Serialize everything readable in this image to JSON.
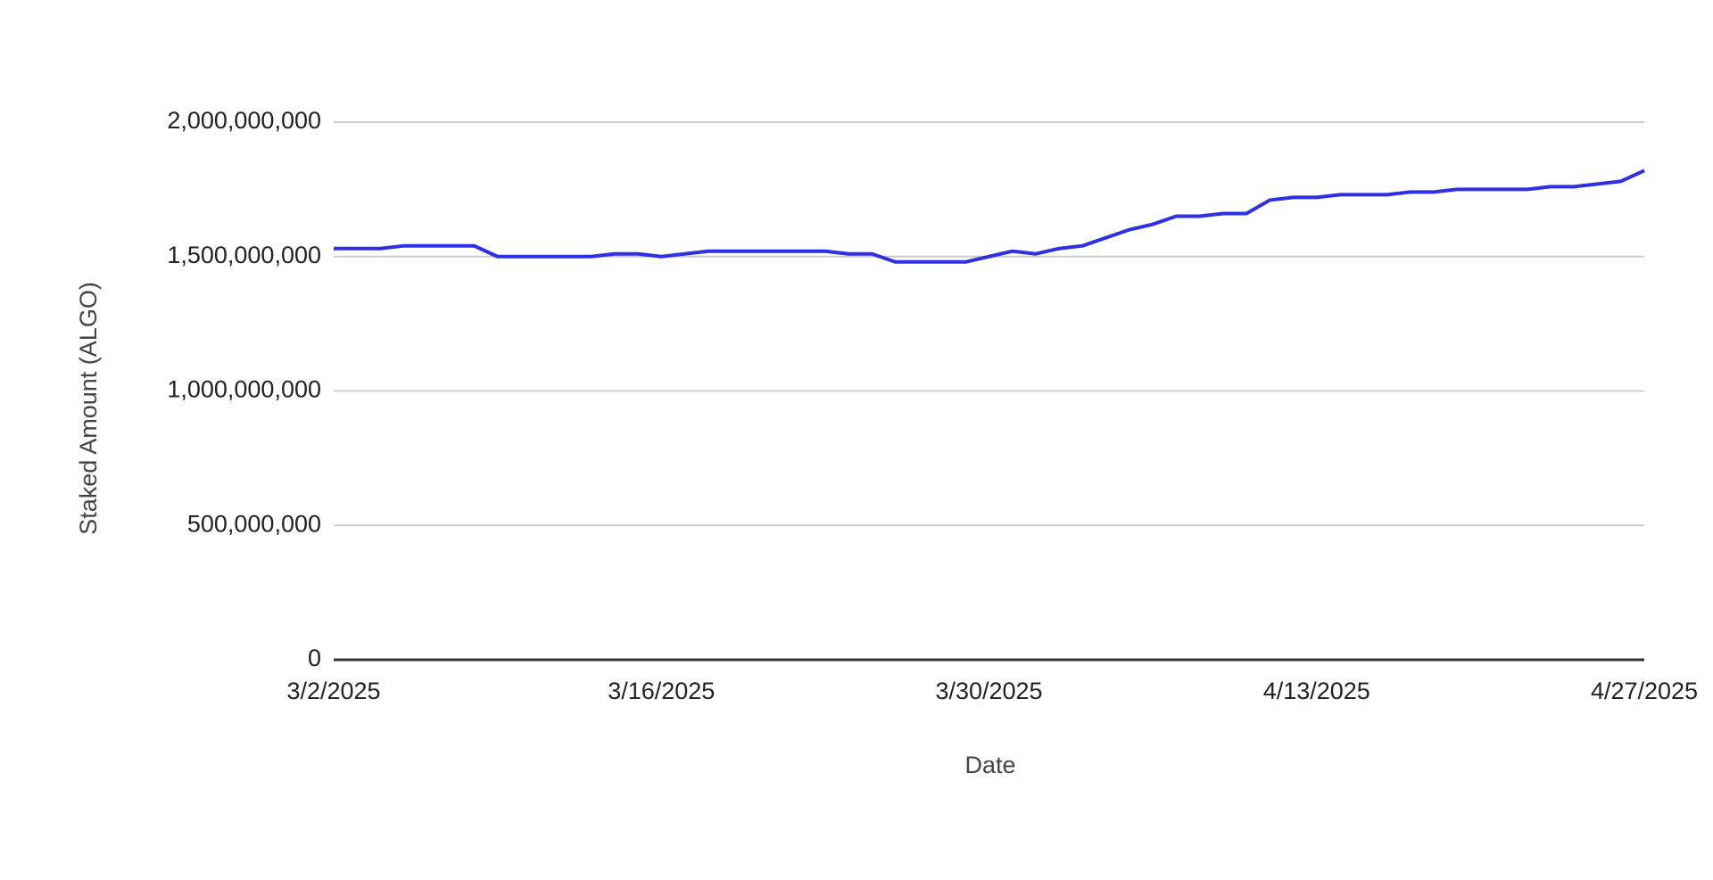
{
  "chart_data": {
    "type": "line",
    "x_label": "Date",
    "y_label": "Staked Amount (ALGO)",
    "x": [
      "3/2/2025",
      "3/3/2025",
      "3/4/2025",
      "3/5/2025",
      "3/6/2025",
      "3/7/2025",
      "3/8/2025",
      "3/9/2025",
      "3/10/2025",
      "3/11/2025",
      "3/12/2025",
      "3/13/2025",
      "3/14/2025",
      "3/15/2025",
      "3/16/2025",
      "3/17/2025",
      "3/18/2025",
      "3/19/2025",
      "3/20/2025",
      "3/21/2025",
      "3/22/2025",
      "3/23/2025",
      "3/24/2025",
      "3/25/2025",
      "3/26/2025",
      "3/27/2025",
      "3/28/2025",
      "3/29/2025",
      "3/30/2025",
      "3/31/2025",
      "4/1/2025",
      "4/2/2025",
      "4/3/2025",
      "4/4/2025",
      "4/5/2025",
      "4/6/2025",
      "4/7/2025",
      "4/8/2025",
      "4/9/2025",
      "4/10/2025",
      "4/11/2025",
      "4/12/2025",
      "4/13/2025",
      "4/14/2025",
      "4/15/2025",
      "4/16/2025",
      "4/17/2025",
      "4/18/2025",
      "4/19/2025",
      "4/20/2025",
      "4/21/2025",
      "4/22/2025",
      "4/23/2025",
      "4/24/2025",
      "4/25/2025",
      "4/26/2025",
      "4/27/2025"
    ],
    "xticks": [
      "3/2/2025",
      "3/16/2025",
      "3/30/2025",
      "4/13/2025",
      "4/27/2025"
    ],
    "series": [
      {
        "color": "#2f2fe4",
        "values": [
          1530000000,
          1530000000,
          1530000000,
          1540000000,
          1540000000,
          1540000000,
          1540000000,
          1500000000,
          1500000000,
          1500000000,
          1500000000,
          1500000000,
          1510000000,
          1510000000,
          1500000000,
          1510000000,
          1520000000,
          1520000000,
          1520000000,
          1520000000,
          1520000000,
          1520000000,
          1510000000,
          1510000000,
          1480000000,
          1480000000,
          1480000000,
          1480000000,
          1500000000,
          1520000000,
          1510000000,
          1530000000,
          1540000000,
          1570000000,
          1600000000,
          1620000000,
          1650000000,
          1650000000,
          1660000000,
          1660000000,
          1710000000,
          1720000000,
          1720000000,
          1730000000,
          1730000000,
          1730000000,
          1740000000,
          1740000000,
          1750000000,
          1750000000,
          1750000000,
          1750000000,
          1760000000,
          1760000000,
          1770000000,
          1780000000,
          1820000000
        ]
      }
    ],
    "ylim": [
      0,
      2000000000
    ],
    "yticks": [
      0,
      {
        "value": 500000000,
        "label": "500,000,000"
      },
      {
        "value": 1000000000,
        "label": "1,000,000,000"
      },
      {
        "value": 1500000000,
        "label": "1,500,000,000"
      },
      {
        "value": 2000000000,
        "label": "2,000,000,000"
      }
    ],
    "grid": true
  }
}
